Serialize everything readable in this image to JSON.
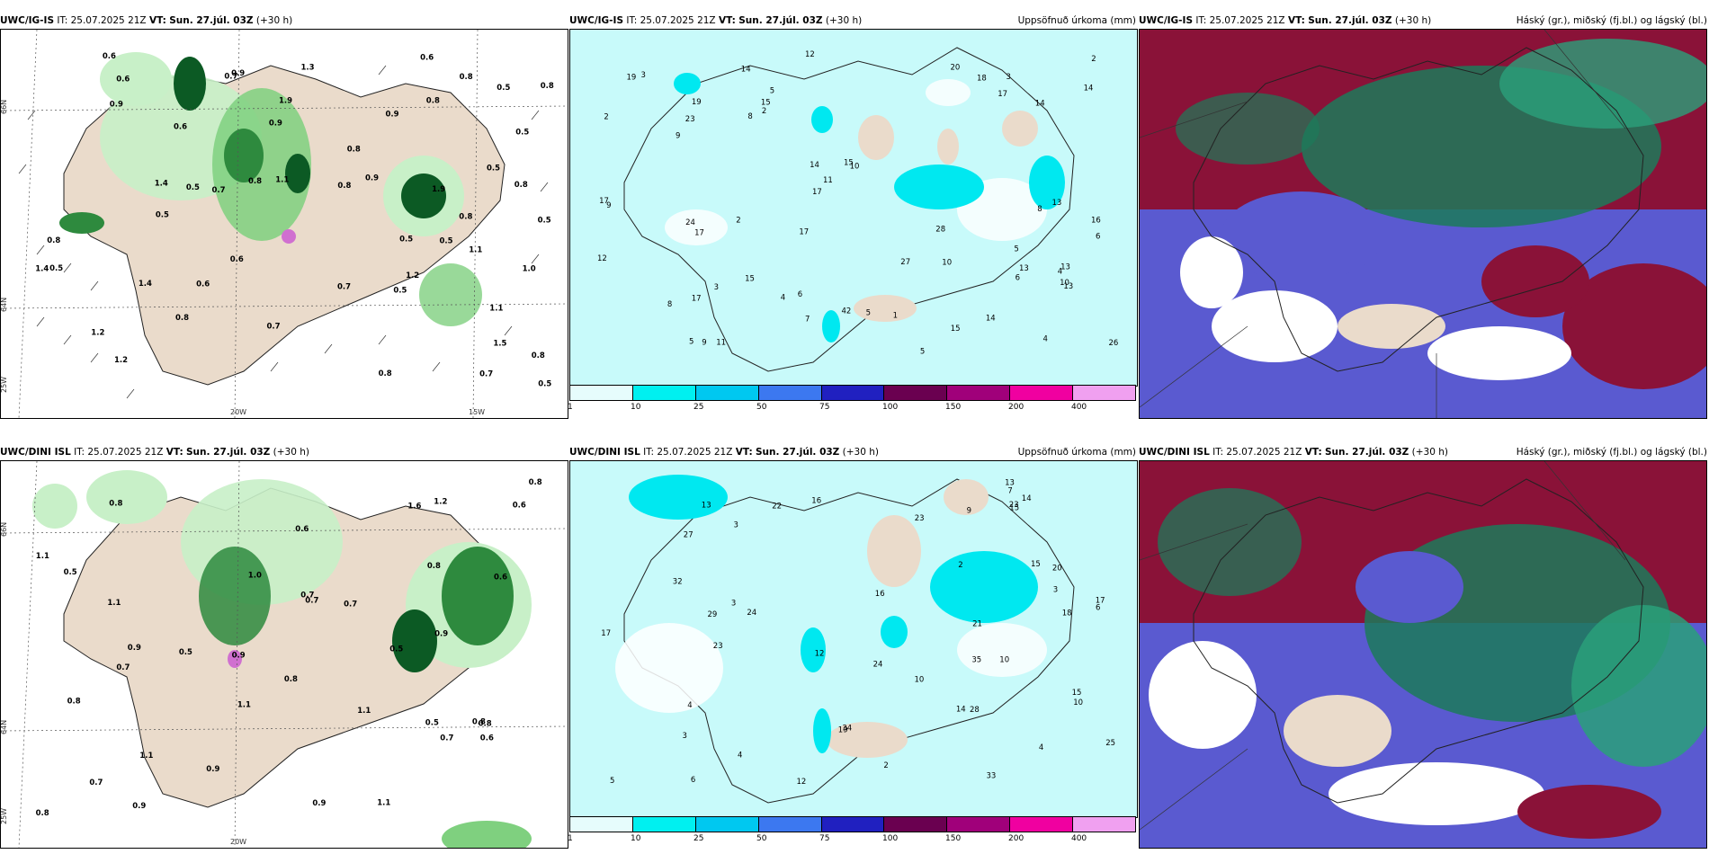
{
  "header": {
    "it_label": "IT:",
    "it_value": "25.07.2025 21Z",
    "vt_label": "VT:",
    "vt_value": "Sun. 27.júl. 03Z",
    "lead": "(+30 h)"
  },
  "rows": [
    {
      "model": "UWC/IG-IS",
      "panels": [
        {
          "title_right": ""
        },
        {
          "title_right": "Uppsöfnuð úrkoma (mm)"
        },
        {
          "title_right": "Háský (gr.), miðský (fj.bl.) og lágský (bl.)"
        }
      ]
    },
    {
      "model": "UWC/DINI ISL",
      "panels": [
        {
          "title_right": ""
        },
        {
          "title_right": "Uppsöfnuð úrkoma (mm)"
        },
        {
          "title_right": "Háský (gr.), miðský (fj.bl.) og lágský (bl.)"
        }
      ]
    }
  ],
  "axes": {
    "lat_labels": [
      "66N",
      "64N"
    ],
    "lon_labels": [
      "25W",
      "20W",
      "15W"
    ]
  },
  "colorbar": {
    "ticks": [
      "1",
      "10",
      "25",
      "50",
      "75",
      "100",
      "150",
      "200",
      "400"
    ],
    "colors": [
      "#e6fcfc",
      "#00f0f0",
      "#00c8f0",
      "#3c78f0",
      "#2020c0",
      "#6a0050",
      "#a0007a",
      "#f000a0",
      "#f0a0f0"
    ]
  },
  "colors": {
    "land": "#eadbcb",
    "precip_light": "#c8f0c8",
    "precip_med": "#4cb04c",
    "precip_dark": "#0c5a24",
    "accum_base": "#c8fafa",
    "high_cloud": "#1c7a5a",
    "mid_cloud": "#8a1238",
    "low_cloud": "#5a5ad0"
  },
  "values": {
    "r0p0": [
      "0.9",
      "0.8",
      "0.5",
      "0.6",
      "0.8",
      "0.5",
      "1.9",
      "1.1",
      "0.5",
      "0.6",
      "0.8",
      "1.2",
      "0.7",
      "0.6",
      "1.5",
      "1.4",
      "0.8",
      "1.1",
      "0.7",
      "0.8",
      "0.7",
      "0.6",
      "0.9",
      "1.2",
      "0.8",
      "0.7",
      "0.6",
      "0.5",
      "0.5",
      "0.7",
      "0.8",
      "0.9",
      "1.1",
      "0.5",
      "0.8",
      "0.5",
      "1.4",
      "1.0",
      "1.9",
      "0.8",
      "0.9",
      "0.6",
      "1.2",
      "1.3",
      "1.4",
      "0.9",
      "0.5",
      "0.8",
      "0.5",
      "0.8",
      "0.5",
      "0.5",
      "0.8"
    ],
    "r0p1": [
      "9",
      "6",
      "11",
      "7",
      "8",
      "13",
      "10",
      "14",
      "15",
      "9",
      "12",
      "13",
      "5",
      "14",
      "13",
      "3",
      "5",
      "6",
      "9",
      "5",
      "10",
      "4",
      "17",
      "17",
      "14",
      "20",
      "23",
      "24",
      "19",
      "26",
      "42",
      "17",
      "27",
      "28",
      "15",
      "15",
      "19",
      "14",
      "17",
      "12",
      "18",
      "15",
      "13",
      "17",
      "2",
      "8",
      "5",
      "14",
      "11",
      "17",
      "16",
      "10",
      "6",
      "2",
      "1",
      "3",
      "2",
      "3",
      "2",
      "5",
      "4",
      "4",
      "8"
    ],
    "r1p0": [
      "0.6",
      "0.9",
      "0.9",
      "0.8",
      "0.8",
      "0.7",
      "0.7",
      "0.5",
      "0.8",
      "0.7",
      "1.1",
      "1.2",
      "0.9",
      "0.7",
      "1.6",
      "0.5",
      "0.8",
      "1.1",
      "1.1",
      "0.8",
      "0.6",
      "0.9",
      "0.7",
      "0.8",
      "1.1",
      "0.5",
      "0.8",
      "0.9",
      "1.1",
      "0.8",
      "1.1",
      "0.7",
      "0.6",
      "0.6",
      "1.0",
      "0.9",
      "0.5"
    ],
    "r1p1": [
      "34",
      "19",
      "23",
      "12",
      "10",
      "24",
      "15",
      "12",
      "10",
      "6",
      "9",
      "7",
      "21",
      "17",
      "16",
      "14",
      "23",
      "15",
      "23",
      "20",
      "24",
      "25",
      "32",
      "29",
      "28",
      "35",
      "18",
      "22",
      "17",
      "14",
      "27",
      "13",
      "10",
      "16",
      "33",
      "15",
      "13",
      "6",
      "5",
      "3",
      "4",
      "2",
      "4",
      "2",
      "4",
      "3",
      "3",
      "3"
    ]
  }
}
